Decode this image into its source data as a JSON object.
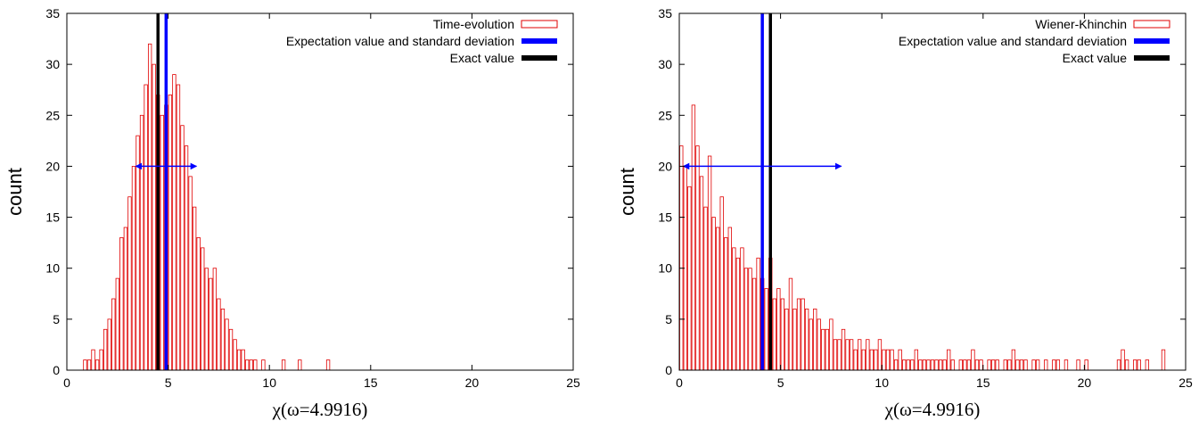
{
  "chart_data": [
    {
      "type": "histogram",
      "xlabel": "χ(ω=4.9916)",
      "ylabel": "count",
      "xlim": [
        0,
        25
      ],
      "ylim": [
        0,
        35
      ],
      "xticks": [
        0,
        5,
        10,
        15,
        20,
        25
      ],
      "yticks": [
        0,
        5,
        10,
        15,
        20,
        25,
        30,
        35
      ],
      "histogram": {
        "name": "Time-evolution",
        "color": "#e00000",
        "bins": [
          0.8,
          1,
          1.2,
          1.4,
          1.6,
          1.8,
          2,
          2.2,
          2.4,
          2.6,
          2.8,
          3,
          3.2,
          3.4,
          3.6,
          3.8,
          4,
          4.2,
          4.4,
          4.6,
          4.8,
          5,
          5.2,
          5.4,
          5.6,
          5.8,
          6,
          6.2,
          6.4,
          6.6,
          6.8,
          7,
          7.2,
          7.4,
          7.6,
          7.8,
          8,
          8.2,
          8.4,
          8.6,
          8.8,
          9,
          9.2,
          9.4,
          9.6,
          9.8,
          10,
          10.2,
          10.4,
          10.6,
          10.8,
          11,
          11.2,
          11.4,
          11.6,
          11.8,
          12,
          12.2,
          12.4,
          12.6,
          12.8,
          13
        ],
        "counts": [
          1,
          1,
          2,
          1,
          2,
          4,
          5,
          7,
          9,
          13,
          14,
          17,
          20,
          23,
          25,
          28,
          32,
          30,
          27,
          25,
          26,
          27,
          29,
          28,
          24,
          22,
          19,
          16,
          13,
          12,
          10,
          9,
          10,
          7,
          6,
          5,
          4,
          3,
          2,
          2,
          1,
          1,
          1,
          0,
          1,
          0,
          0,
          0,
          0,
          1,
          0,
          0,
          0,
          1,
          0,
          0,
          0,
          0,
          0,
          0,
          1
        ]
      },
      "expectation": {
        "name": "Expectation value and standard deviation",
        "color": "#0000ff",
        "value": 4.9,
        "std": 1.5,
        "arrow_y": 20
      },
      "exact": {
        "name": "Exact value",
        "color": "#000000",
        "value": 4.5
      }
    },
    {
      "type": "histogram",
      "xlabel": "χ(ω=4.9916)",
      "ylabel": "count",
      "xlim": [
        0,
        25
      ],
      "ylim": [
        0,
        35
      ],
      "xticks": [
        0,
        5,
        10,
        15,
        20,
        25
      ],
      "yticks": [
        0,
        5,
        10,
        15,
        20,
        25,
        30,
        35
      ],
      "histogram": {
        "name": "Wiener-Khinchin",
        "color": "#e00000",
        "bins": [
          0,
          0.2,
          0.4,
          0.6,
          0.8,
          1,
          1.2,
          1.4,
          1.6,
          1.8,
          2,
          2.2,
          2.4,
          2.6,
          2.8,
          3,
          3.2,
          3.4,
          3.6,
          3.8,
          4,
          4.2,
          4.4,
          4.6,
          4.8,
          5,
          5.2,
          5.4,
          5.6,
          5.8,
          6,
          6.2,
          6.4,
          6.6,
          6.8,
          7,
          7.2,
          7.4,
          7.6,
          7.8,
          8,
          8.2,
          8.4,
          8.6,
          8.8,
          9,
          9.2,
          9.4,
          9.6,
          9.8,
          10,
          10.2,
          10.4,
          10.6,
          10.8,
          11,
          11.2,
          11.4,
          11.6,
          11.8,
          12,
          12.2,
          12.4,
          12.6,
          12.8,
          13,
          13.2,
          13.4,
          13.6,
          13.8,
          14,
          14.2,
          14.4,
          14.6,
          14.8,
          15,
          15.2,
          15.4,
          15.6,
          15.8,
          16,
          16.2,
          16.4,
          16.6,
          16.8,
          17,
          17.2,
          17.4,
          17.6,
          17.8,
          18,
          18.2,
          18.4,
          18.6,
          18.8,
          19,
          19.2,
          19.4,
          19.6,
          19.8,
          20,
          20.2,
          20.4,
          20.6,
          20.8,
          21,
          21.2,
          21.4,
          21.6,
          21.8,
          22,
          22.2,
          22.4,
          22.6,
          22.8,
          23,
          23.2,
          23.4,
          23.6,
          23.8,
          24
        ],
        "counts": [
          22,
          20,
          18,
          26,
          22,
          19,
          16,
          21,
          15,
          14,
          17,
          13,
          14,
          12,
          11,
          12,
          10,
          10,
          9,
          11,
          9,
          8,
          11,
          7,
          8,
          7,
          6,
          9,
          6,
          7,
          7,
          6,
          5,
          6,
          5,
          4,
          4,
          5,
          3,
          3,
          4,
          3,
          3,
          2,
          3,
          2,
          3,
          2,
          2,
          3,
          2,
          2,
          2,
          1,
          2,
          1,
          1,
          1,
          2,
          1,
          1,
          1,
          1,
          1,
          1,
          1,
          2,
          1,
          0,
          1,
          1,
          1,
          2,
          1,
          1,
          0,
          1,
          1,
          1,
          0,
          1,
          1,
          2,
          1,
          1,
          1,
          0,
          1,
          1,
          0,
          1,
          0,
          1,
          1,
          0,
          1,
          0,
          0,
          1,
          0,
          1,
          0,
          0,
          0,
          0,
          0,
          0,
          0,
          1,
          2,
          1,
          0,
          1,
          1,
          0,
          1,
          0,
          0,
          0,
          2
        ]
      },
      "expectation": {
        "name": "Expectation value and standard deviation",
        "color": "#0000ff",
        "value": 4.1,
        "std": 3.9,
        "arrow_y": 20
      },
      "exact": {
        "name": "Exact value",
        "color": "#000000",
        "value": 4.5
      }
    }
  ]
}
